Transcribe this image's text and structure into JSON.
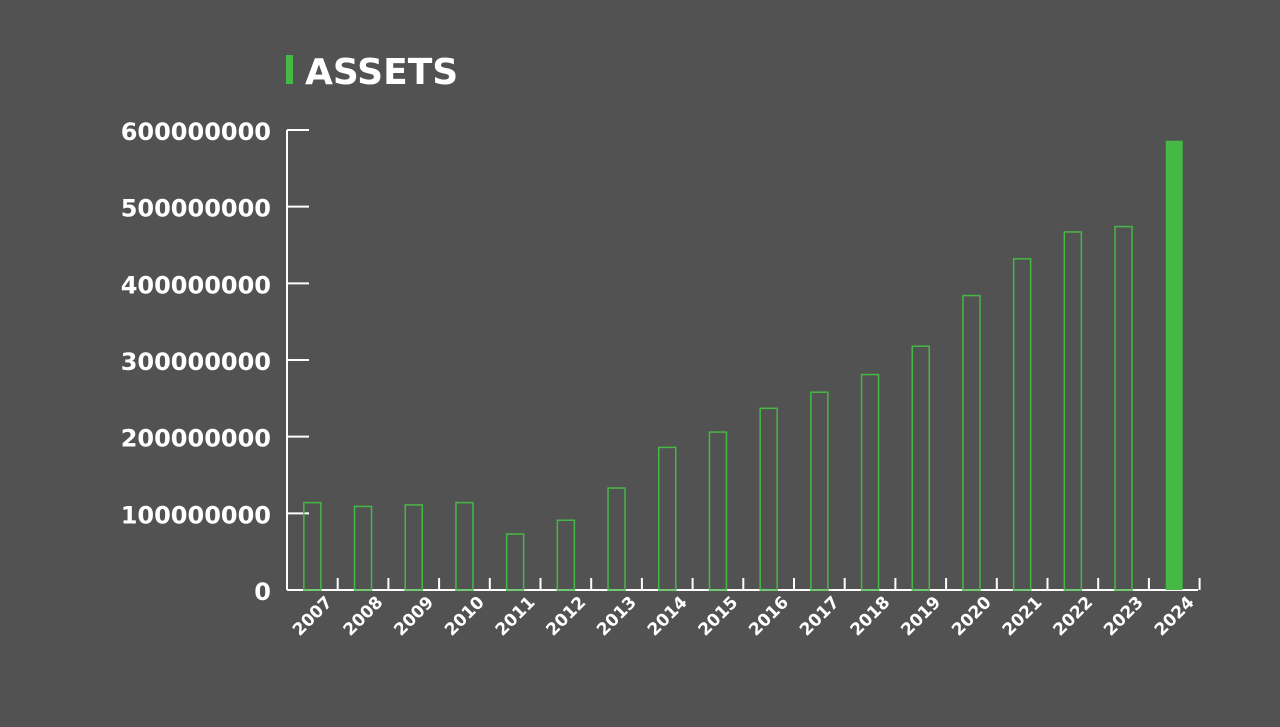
{
  "colors": {
    "background": "#525252",
    "accent": "#45b845",
    "axis": "#ffffff",
    "text": "#ffffff"
  },
  "chart_data": {
    "type": "bar",
    "title": "ASSETS",
    "xlabel": "",
    "ylabel": "",
    "ylim": [
      0,
      600000000
    ],
    "yticks": [
      "0",
      "100000000",
      "200000000",
      "300000000",
      "400000000",
      "500000000",
      "600000000"
    ],
    "categories": [
      "2007",
      "2008",
      "2009",
      "2010",
      "2011",
      "2012",
      "2013",
      "2014",
      "2015",
      "2016",
      "2017",
      "2018",
      "2019",
      "2020",
      "2021",
      "2022",
      "2023",
      "2024"
    ],
    "values": [
      114000000,
      109000000,
      111000000,
      114000000,
      73000000,
      91000000,
      133000000,
      186000000,
      206000000,
      237000000,
      258000000,
      281000000,
      318000000,
      384000000,
      432000000,
      467000000,
      474000000,
      586000000
    ],
    "highlighted_category": "2024",
    "grid": false,
    "legend": "none"
  }
}
